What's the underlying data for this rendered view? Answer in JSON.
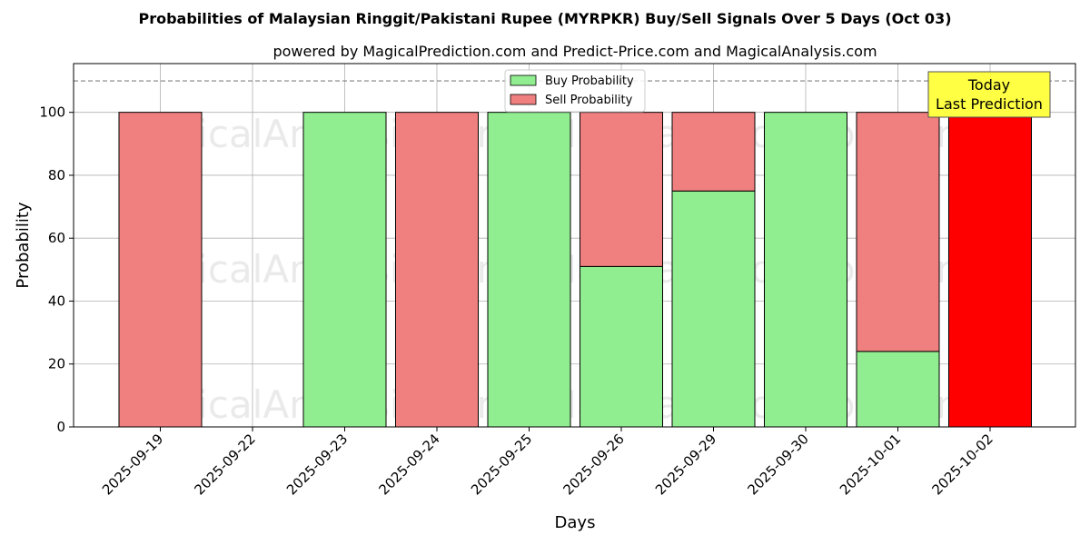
{
  "chart_data": {
    "type": "bar",
    "stacked": true,
    "title": "Probabilities of Malaysian Ringgit/Pakistani Rupee (MYRPKR) Buy/Sell Signals Over 5 Days (Oct 03)",
    "subtitle": "powered by MagicalPrediction.com and Predict-Price.com and MagicalAnalysis.com",
    "xlabel": "Days",
    "ylabel": "Probability",
    "ylim": [
      0,
      115.5
    ],
    "yticks": [
      0,
      20,
      40,
      60,
      80,
      100
    ],
    "grid": true,
    "reference_line": 110,
    "legend_placement": "top-center",
    "categories": [
      "2025-09-19",
      "2025-09-22",
      "2025-09-23",
      "2025-09-24",
      "2025-09-25",
      "2025-09-26",
      "2025-09-29",
      "2025-09-30",
      "2025-10-01",
      "2025-10-02"
    ],
    "series": [
      {
        "name": "Buy Probability",
        "color": "#90ee90",
        "values": [
          0,
          0,
          100,
          0,
          100,
          51,
          75,
          100,
          24,
          0
        ]
      },
      {
        "name": "Sell Probability",
        "color": "#f08080",
        "values": [
          100,
          0,
          0,
          100,
          0,
          49,
          25,
          0,
          76,
          100
        ]
      }
    ],
    "highlight": {
      "category": "2025-10-02",
      "color": "#ff0000"
    },
    "annotation": {
      "line1": "Today",
      "line2": "Last Prediction"
    },
    "watermarks": [
      "MagicalAnalysis.com",
      "MagicalPrediction.com"
    ]
  }
}
